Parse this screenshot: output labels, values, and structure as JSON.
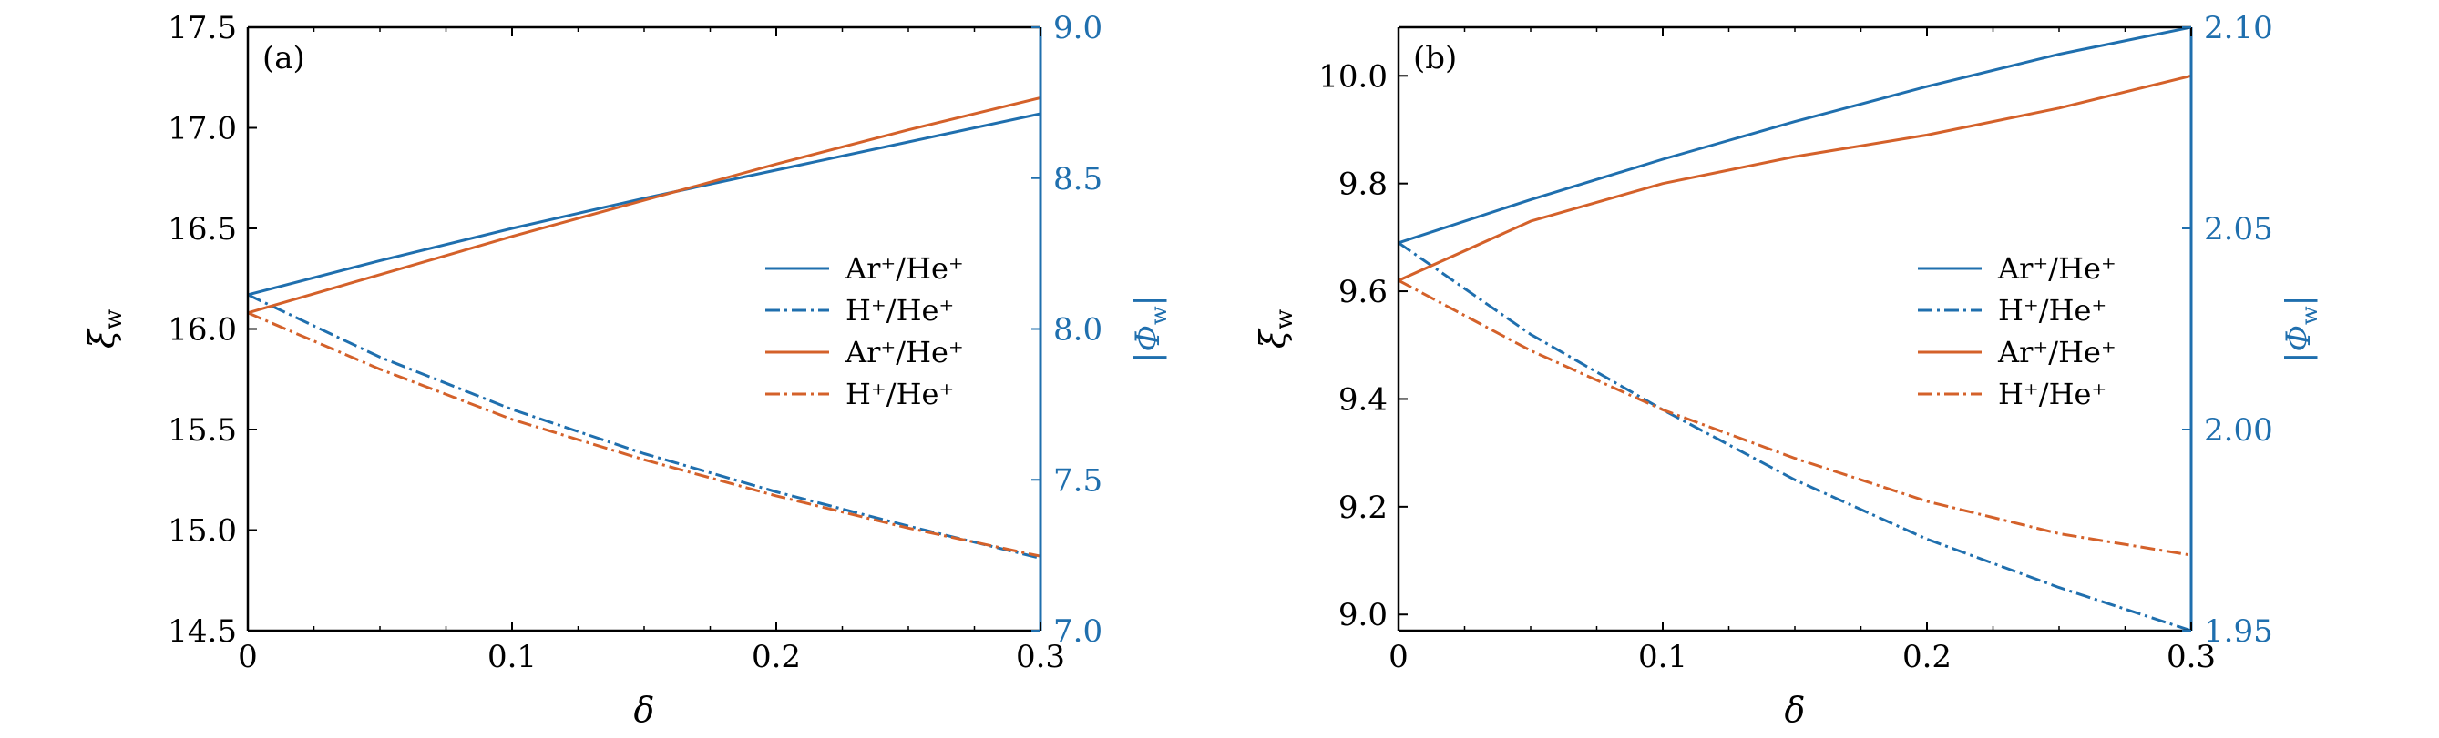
{
  "colors": {
    "blue": "#1f6fae",
    "orange": "#d4612a",
    "axis": "#000000"
  },
  "chart_data": [
    {
      "type": "line",
      "panel_label": "(a)",
      "xlabel": "δ",
      "ylabel_left": "ξ",
      "ylabel_left_sub": "w",
      "ylabel_right": "|Φ",
      "ylabel_right_sub": "w",
      "ylabel_right_close": "|",
      "xlim": [
        0,
        0.3
      ],
      "ylim_left": [
        14.5,
        17.5
      ],
      "ylim_right": [
        7.0,
        9.0
      ],
      "xticks": [
        "0",
        "0.1",
        "0.2",
        "0.3"
      ],
      "yticks_left": [
        "14.5",
        "15.0",
        "15.5",
        "16.0",
        "16.5",
        "17.0",
        "17.5"
      ],
      "yticks_right": [
        "7.0",
        "7.5",
        "8.0",
        "8.5",
        "9.0"
      ],
      "legend_position": "right-center",
      "x": [
        0,
        0.05,
        0.1,
        0.15,
        0.2,
        0.25,
        0.3
      ],
      "series": [
        {
          "name": "Ar⁺/He⁺",
          "color": "blue",
          "dash": "solid",
          "axis": "left",
          "values": [
            16.17,
            16.34,
            16.5,
            16.65,
            16.79,
            16.93,
            17.07
          ]
        },
        {
          "name": "H⁺/He⁺",
          "color": "blue",
          "dash": "dashdot",
          "axis": "left",
          "values": [
            16.17,
            15.86,
            15.6,
            15.38,
            15.19,
            15.02,
            14.86
          ]
        },
        {
          "name": "Ar⁺/He⁺",
          "color": "orange",
          "dash": "solid",
          "axis": "left",
          "values": [
            16.08,
            16.27,
            16.46,
            16.64,
            16.82,
            16.99,
            17.15
          ]
        },
        {
          "name": "H⁺/He⁺",
          "color": "orange",
          "dash": "dashdot",
          "axis": "left",
          "values": [
            16.08,
            15.8,
            15.55,
            15.35,
            15.17,
            15.01,
            14.87
          ]
        }
      ]
    },
    {
      "type": "line",
      "panel_label": "(b)",
      "xlabel": "δ",
      "ylabel_left": "ξ",
      "ylabel_left_sub": "w",
      "ylabel_right": "|Φ",
      "ylabel_right_sub": "w",
      "ylabel_right_close": "|",
      "xlim": [
        0,
        0.3
      ],
      "ylim_left": [
        8.97,
        10.09
      ],
      "ylim_right": [
        1.95,
        2.1
      ],
      "xticks": [
        "0",
        "0.1",
        "0.2",
        "0.3"
      ],
      "yticks_left": [
        "9.0",
        "9.2",
        "9.4",
        "9.6",
        "9.8",
        "10.0"
      ],
      "yticks_right": [
        "1.95",
        "2.00",
        "2.05",
        "2.10"
      ],
      "legend_position": "right-center",
      "x": [
        0,
        0.05,
        0.1,
        0.15,
        0.2,
        0.25,
        0.3
      ],
      "series": [
        {
          "name": "Ar⁺/He⁺",
          "color": "blue",
          "dash": "solid",
          "axis": "left",
          "values": [
            9.69,
            9.77,
            9.845,
            9.915,
            9.98,
            10.04,
            10.09
          ]
        },
        {
          "name": "H⁺/He⁺",
          "color": "blue",
          "dash": "dashdot",
          "axis": "left",
          "values": [
            9.69,
            9.52,
            9.38,
            9.25,
            9.14,
            9.05,
            8.97
          ]
        },
        {
          "name": "Ar⁺/He⁺",
          "color": "orange",
          "dash": "solid",
          "axis": "left",
          "values": [
            9.62,
            9.73,
            9.8,
            9.85,
            9.89,
            9.94,
            10.0
          ]
        },
        {
          "name": "H⁺/He⁺",
          "color": "orange",
          "dash": "dashdot",
          "axis": "left",
          "values": [
            9.62,
            9.49,
            9.38,
            9.29,
            9.21,
            9.15,
            9.11
          ]
        }
      ]
    }
  ]
}
